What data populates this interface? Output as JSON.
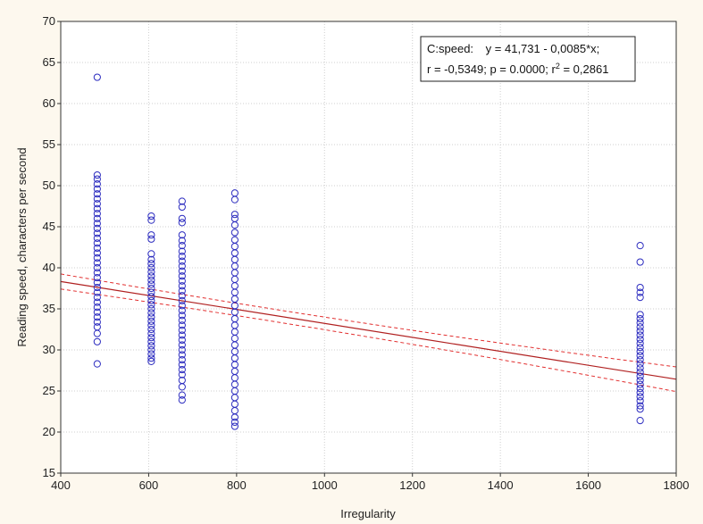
{
  "chart_data": {
    "type": "scatter",
    "title": "",
    "xlabel": "Irregularity",
    "ylabel": "Reading speed, characters per second",
    "xlim": [
      400,
      1800
    ],
    "ylim": [
      15,
      70
    ],
    "x_ticks": [
      "400",
      "600",
      "800",
      "1000",
      "1200",
      "1400",
      "1600",
      "1800"
    ],
    "y_ticks": [
      "15",
      "20",
      "25",
      "30",
      "35",
      "40",
      "45",
      "50",
      "55",
      "60",
      "65",
      "70"
    ],
    "grid": true,
    "legend_box": {
      "line1_left": "C:speed:",
      "line1_right": "y = 41,731 - 0,0085*x;",
      "line2_a": "r = -0,5349; p = 0.0000; r",
      "line2_sup": "2",
      "line2_b": " = 0,2861",
      "placement": "top-right"
    },
    "regression": {
      "intercept": 41.731,
      "slope": -0.0085,
      "ci_halfwidth": 0.75
    },
    "colors": {
      "points": "#2b2bbf",
      "fit": "#b02020",
      "ci": "#e23030",
      "grid": "#cfcfcf",
      "plot_bg": "#ffffff"
    },
    "series": [
      {
        "x": 483,
        "values": [
          63.2,
          51.3,
          50.8,
          50.2,
          49.6,
          49.0,
          48.4,
          47.8,
          47.2,
          46.6,
          46.0,
          45.4,
          44.8,
          44.2,
          43.6,
          43.0,
          42.4,
          41.8,
          41.2,
          40.6,
          40.0,
          39.4,
          38.8,
          38.2,
          37.6,
          37.0,
          36.4,
          35.8,
          35.2,
          34.6,
          34.0,
          33.4,
          32.8,
          32.0,
          31.0,
          28.3
        ]
      },
      {
        "x": 606,
        "values": [
          46.3,
          45.8,
          44.0,
          43.5,
          41.7,
          41.0,
          40.5,
          40.0,
          39.5,
          39.0,
          38.5,
          38.0,
          37.5,
          37.0,
          36.5,
          36.0,
          35.5,
          35.0,
          34.5,
          34.0,
          33.5,
          33.0,
          32.5,
          32.0,
          31.5,
          31.0,
          30.5,
          30.0,
          29.5,
          29.0,
          28.6
        ]
      },
      {
        "x": 676,
        "values": [
          48.1,
          47.4,
          46.0,
          45.5,
          44.0,
          43.3,
          42.7,
          42.0,
          41.4,
          40.8,
          40.2,
          39.6,
          39.0,
          38.4,
          37.8,
          37.2,
          36.6,
          36.0,
          35.4,
          34.8,
          34.2,
          33.6,
          33.0,
          32.4,
          31.8,
          31.2,
          30.6,
          30.0,
          29.4,
          28.8,
          28.2,
          27.6,
          27.0,
          26.3,
          25.5,
          24.5,
          23.9
        ]
      },
      {
        "x": 796,
        "values": [
          49.1,
          48.3,
          46.5,
          46.0,
          45.2,
          44.3,
          43.4,
          42.6,
          41.8,
          41.0,
          40.2,
          39.4,
          38.6,
          37.8,
          37.0,
          36.2,
          35.4,
          34.6,
          33.8,
          33.0,
          32.2,
          31.4,
          30.6,
          29.8,
          29.0,
          28.2,
          27.4,
          26.6,
          25.8,
          25.0,
          24.2,
          23.4,
          22.6,
          21.8,
          21.2,
          20.7
        ]
      },
      {
        "x": 1718,
        "values": [
          42.7,
          40.7,
          37.6,
          37.0,
          36.4,
          34.3,
          33.8,
          33.3,
          32.8,
          32.3,
          31.8,
          31.3,
          30.8,
          30.3,
          29.8,
          29.3,
          28.8,
          28.3,
          27.8,
          27.3,
          26.8,
          26.3,
          25.8,
          25.3,
          24.8,
          24.3,
          23.8,
          23.2,
          22.8,
          21.4
        ]
      }
    ]
  }
}
